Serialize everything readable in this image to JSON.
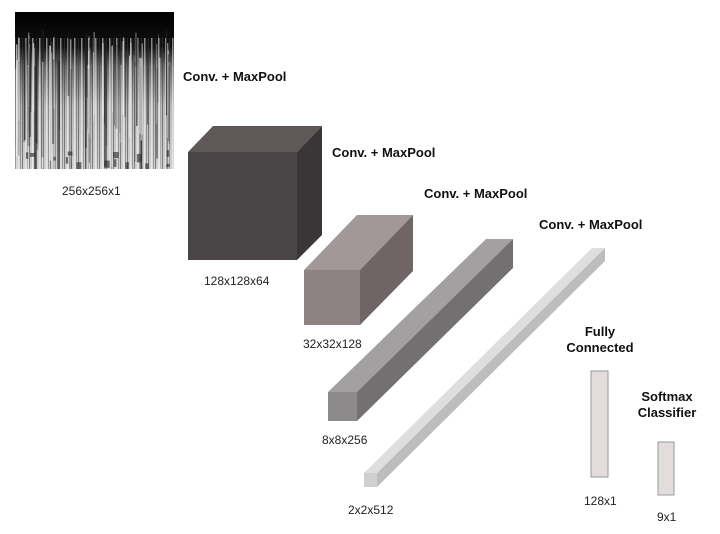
{
  "diagram": {
    "input": {
      "kind": "spectrogram-image",
      "shape": "256x256x1"
    },
    "layers": [
      {
        "type": "Conv. + MaxPool",
        "output_shape": "128x128x64",
        "color": "#4a4546"
      },
      {
        "type": "Conv. + MaxPool",
        "output_shape": "32x32x128",
        "color": "#8e8383"
      },
      {
        "type": "Conv. + MaxPool",
        "output_shape": "8x8x256",
        "color": "#8c8a8b"
      },
      {
        "type": "Conv. + MaxPool",
        "output_shape": "2x2x512",
        "color": "#cfcfcf"
      }
    ],
    "fully_connected": {
      "title_line1": "Fully",
      "title_line2": "Connected",
      "shape": "128x1",
      "color": "#e2dcdc"
    },
    "softmax": {
      "title_line1": "Softmax",
      "title_line2": "Classifier",
      "shape": "9x1",
      "color": "#e2dcdc"
    }
  }
}
